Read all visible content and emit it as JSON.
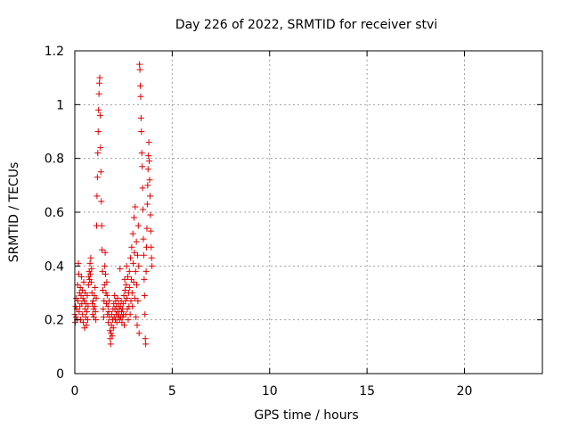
{
  "chart_data": {
    "type": "scatter",
    "title": "Day 226 of 2022, SRMTID for receiver stvi",
    "xlabel": "GPS time / hours",
    "ylabel": "SRMTID / TECUs",
    "xlim": [
      0,
      24
    ],
    "ylim": [
      0,
      1.2
    ],
    "xticks": [
      0,
      5,
      10,
      15,
      20
    ],
    "xtick_labels": [
      "0",
      "5",
      "10",
      "15",
      "20"
    ],
    "yticks": [
      0,
      0.2,
      0.4,
      0.6,
      0.8,
      1,
      1.2
    ],
    "ytick_labels": [
      "0",
      "0.2",
      "0.4",
      "0.6",
      "0.8",
      "1",
      "1.2"
    ],
    "grid": true,
    "marker": "plus",
    "color": "#e00000",
    "series": [
      {
        "name": "stvi",
        "points": [
          [
            0.0,
            0.22
          ],
          [
            0.02,
            0.19
          ],
          [
            0.04,
            0.25
          ],
          [
            0.06,
            0.21
          ],
          [
            0.08,
            0.28
          ],
          [
            0.1,
            0.24
          ],
          [
            0.12,
            0.2
          ],
          [
            0.14,
            0.33
          ],
          [
            0.16,
            0.27
          ],
          [
            0.18,
            0.41
          ],
          [
            0.2,
            0.37
          ],
          [
            0.22,
            0.23
          ],
          [
            0.24,
            0.3
          ],
          [
            0.26,
            0.25
          ],
          [
            0.28,
            0.32
          ],
          [
            0.3,
            0.2
          ],
          [
            0.32,
            0.29
          ],
          [
            0.34,
            0.36
          ],
          [
            0.36,
            0.26
          ],
          [
            0.38,
            0.31
          ],
          [
            0.4,
            0.22
          ],
          [
            0.42,
            0.28
          ],
          [
            0.44,
            0.19
          ],
          [
            0.46,
            0.34
          ],
          [
            0.48,
            0.27
          ],
          [
            0.5,
            0.17
          ],
          [
            0.52,
            0.24
          ],
          [
            0.54,
            0.3
          ],
          [
            0.56,
            0.21
          ],
          [
            0.58,
            0.26
          ],
          [
            0.6,
            0.18
          ],
          [
            0.62,
            0.23
          ],
          [
            0.64,
            0.29
          ],
          [
            0.66,
            0.2
          ],
          [
            0.68,
            0.25
          ],
          [
            0.7,
            0.33
          ],
          [
            0.72,
            0.36
          ],
          [
            0.74,
            0.38
          ],
          [
            0.76,
            0.35
          ],
          [
            0.78,
            0.41
          ],
          [
            0.8,
            0.37
          ],
          [
            0.82,
            0.43
          ],
          [
            0.84,
            0.34
          ],
          [
            0.86,
            0.39
          ],
          [
            0.88,
            0.3
          ],
          [
            0.9,
            0.26
          ],
          [
            0.92,
            0.22
          ],
          [
            0.94,
            0.27
          ],
          [
            0.96,
            0.24
          ],
          [
            0.98,
            0.21
          ],
          [
            1.0,
            0.29
          ],
          [
            1.02,
            0.25
          ],
          [
            1.04,
            0.32
          ],
          [
            1.06,
            0.23
          ],
          [
            1.08,
            0.2
          ],
          [
            1.1,
            0.28
          ],
          [
            1.12,
            0.55
          ],
          [
            1.14,
            0.66
          ],
          [
            1.16,
            0.73
          ],
          [
            1.18,
            0.82
          ],
          [
            1.2,
            0.9
          ],
          [
            1.22,
            0.98
          ],
          [
            1.24,
            1.04
          ],
          [
            1.26,
            1.08
          ],
          [
            1.28,
            1.1
          ],
          [
            1.3,
            0.96
          ],
          [
            1.32,
            0.84
          ],
          [
            1.34,
            0.75
          ],
          [
            1.36,
            0.64
          ],
          [
            1.38,
            0.55
          ],
          [
            1.4,
            0.46
          ],
          [
            1.42,
            0.38
          ],
          [
            1.44,
            0.31
          ],
          [
            1.46,
            0.24
          ],
          [
            1.48,
            0.21
          ],
          [
            1.5,
            0.27
          ],
          [
            1.52,
            0.33
          ],
          [
            1.54,
            0.4
          ],
          [
            1.56,
            0.45
          ],
          [
            1.58,
            0.37
          ],
          [
            1.6,
            0.3
          ],
          [
            1.62,
            0.26
          ],
          [
            1.64,
            0.34
          ],
          [
            1.66,
            0.29
          ],
          [
            1.68,
            0.22
          ],
          [
            1.7,
            0.25
          ],
          [
            1.72,
            0.19
          ],
          [
            1.74,
            0.23
          ],
          [
            1.76,
            0.27
          ],
          [
            1.78,
            0.21
          ],
          [
            1.8,
            0.16
          ],
          [
            1.82,
            0.13
          ],
          [
            1.84,
            0.11
          ],
          [
            1.86,
            0.15
          ],
          [
            1.88,
            0.18
          ],
          [
            1.9,
            0.22
          ],
          [
            1.92,
            0.14
          ],
          [
            1.94,
            0.2
          ],
          [
            1.96,
            0.24
          ],
          [
            1.98,
            0.17
          ],
          [
            2.0,
            0.26
          ],
          [
            2.02,
            0.21
          ],
          [
            2.04,
            0.29
          ],
          [
            2.06,
            0.24
          ],
          [
            2.08,
            0.2
          ],
          [
            2.1,
            0.27
          ],
          [
            2.12,
            0.22
          ],
          [
            2.14,
            0.25
          ],
          [
            2.16,
            0.19
          ],
          [
            2.18,
            0.23
          ],
          [
            2.2,
            0.28
          ],
          [
            2.22,
            0.21
          ],
          [
            2.24,
            0.26
          ],
          [
            2.26,
            0.22
          ],
          [
            2.28,
            0.24
          ],
          [
            2.3,
            0.2
          ],
          [
            2.32,
            0.39
          ],
          [
            2.34,
            0.25
          ],
          [
            2.36,
            0.21
          ],
          [
            2.38,
            0.27
          ],
          [
            2.4,
            0.23
          ],
          [
            2.42,
            0.19
          ],
          [
            2.44,
            0.24
          ],
          [
            2.46,
            0.21
          ],
          [
            2.48,
            0.26
          ],
          [
            2.5,
            0.22
          ],
          [
            2.52,
            0.29
          ],
          [
            2.54,
            0.18
          ],
          [
            2.56,
            0.35
          ],
          [
            2.58,
            0.31
          ],
          [
            2.6,
            0.27
          ],
          [
            2.62,
            0.22
          ],
          [
            2.64,
            0.33
          ],
          [
            2.66,
            0.4
          ],
          [
            2.68,
            0.28
          ],
          [
            2.7,
            0.24
          ],
          [
            2.72,
            0.36
          ],
          [
            2.74,
            0.2
          ],
          [
            2.76,
            0.3
          ],
          [
            2.78,
            0.25
          ],
          [
            2.8,
            0.38
          ],
          [
            2.82,
            0.32
          ],
          [
            2.84,
            0.22
          ],
          [
            2.86,
            0.43
          ],
          [
            2.88,
            0.27
          ],
          [
            2.9,
            0.35
          ],
          [
            2.92,
            0.47
          ],
          [
            2.94,
            0.3
          ],
          [
            2.96,
            0.25
          ],
          [
            2.98,
            0.52
          ],
          [
            3.0,
            0.41
          ],
          [
            3.02,
            0.34
          ],
          [
            3.04,
            0.58
          ],
          [
            3.06,
            0.45
          ],
          [
            3.08,
            0.28
          ],
          [
            3.1,
            0.62
          ],
          [
            3.12,
            0.38
          ],
          [
            3.14,
            0.21
          ],
          [
            3.16,
            0.49
          ],
          [
            3.18,
            0.33
          ],
          [
            3.2,
            0.18
          ],
          [
            3.22,
            0.44
          ],
          [
            3.24,
            0.27
          ],
          [
            3.26,
            0.55
          ],
          [
            3.28,
            0.4
          ],
          [
            3.3,
            0.15
          ],
          [
            3.32,
            1.15
          ],
          [
            3.34,
            1.13
          ],
          [
            3.36,
            1.07
          ],
          [
            3.38,
            1.03
          ],
          [
            3.4,
            0.95
          ],
          [
            3.42,
            0.9
          ],
          [
            3.44,
            0.82
          ],
          [
            3.46,
            0.77
          ],
          [
            3.48,
            0.69
          ],
          [
            3.5,
            0.61
          ],
          [
            3.52,
            0.5
          ],
          [
            3.54,
            0.44
          ],
          [
            3.56,
            0.35
          ],
          [
            3.58,
            0.29
          ],
          [
            3.6,
            0.22
          ],
          [
            3.62,
            0.13
          ],
          [
            3.64,
            0.11
          ],
          [
            3.66,
            0.38
          ],
          [
            3.68,
            0.47
          ],
          [
            3.7,
            0.54
          ],
          [
            3.72,
            0.63
          ],
          [
            3.74,
            0.7
          ],
          [
            3.76,
            0.76
          ],
          [
            3.78,
            0.81
          ],
          [
            3.8,
            0.86
          ],
          [
            3.82,
            0.79
          ],
          [
            3.84,
            0.72
          ],
          [
            3.86,
            0.66
          ],
          [
            3.88,
            0.59
          ],
          [
            3.9,
            0.53
          ],
          [
            3.92,
            0.47
          ],
          [
            3.94,
            0.43
          ],
          [
            3.96,
            0.4
          ]
        ]
      }
    ]
  }
}
